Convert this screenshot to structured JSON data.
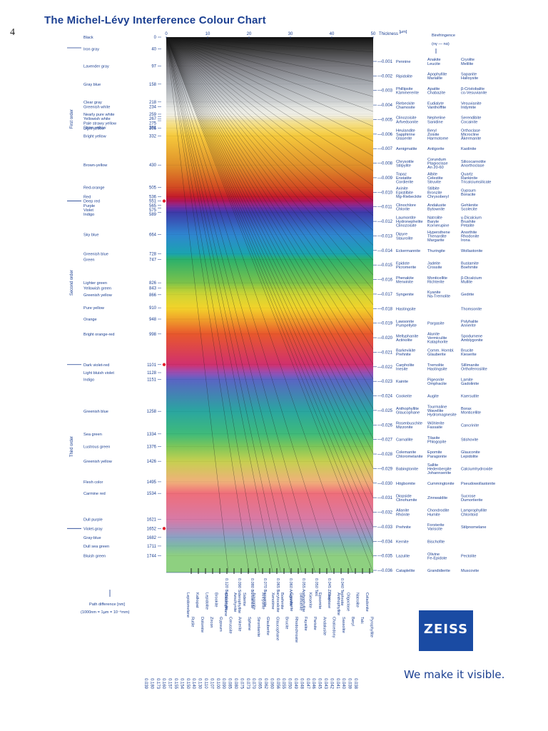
{
  "page": {
    "title": "The Michel-Lévy Interference Colour Chart",
    "page_number": "4"
  },
  "brand": {
    "name": "ZEISS",
    "tagline": "We make it visible.",
    "color": "#1a4ba3"
  },
  "chart_data": {
    "type": "heatmap",
    "title": "The Michel-Lévy Interference Colour Chart",
    "thickness_axis": {
      "label": "Thickness",
      "unit": "[µm]",
      "range": [
        0,
        50
      ],
      "ticks": [
        0,
        10,
        20,
        30,
        40,
        50
      ]
    },
    "path_difference_axis": {
      "range": [
        0,
        1800
      ],
      "note_line1": "Path difference [nm]",
      "note_line2": "(1000nm = 1µm = 10⁻⁶mm)"
    },
    "birefringence_header": {
      "line1": "Birefringence",
      "line2": "(nγ — nα)"
    },
    "orders": [
      "First order",
      "Second order",
      "Third order"
    ],
    "colors": [
      {
        "name": "Black",
        "nm": "0",
        "hex": "#111111"
      },
      {
        "name": "Iron gray",
        "nm": "40",
        "hex": "#3a3a3a"
      },
      {
        "name": "Lavender gray",
        "nm": "97",
        "hex": "#7a7a80"
      },
      {
        "name": "Gray blue",
        "nm": "158",
        "hex": "#a8acb2"
      },
      {
        "name": "Clear gray",
        "nm": "218",
        "hex": "#cfd2d3"
      },
      {
        "name": "Greenish white",
        "nm": "234",
        "hex": "#e2e4e0"
      },
      {
        "name": "Nearly pure white",
        "nm": "259",
        "hex": "#f0efe6"
      },
      {
        "name": "Yellowish white",
        "nm": "267",
        "hex": "#f1edd6"
      },
      {
        "name": "Pale strawy yellow",
        "nm": "275",
        "hex": "#f2e8bf"
      },
      {
        "name": "Straw yellow",
        "nm": "281",
        "hex": "#f2e29e"
      },
      {
        "name": "Light yellow",
        "nm": "306",
        "hex": "#f5d96a"
      },
      {
        "name": "Bright yellow",
        "nm": "332",
        "hex": "#f5c93c"
      },
      {
        "name": "Brown-yellow",
        "nm": "430",
        "hex": "#e0912a"
      },
      {
        "name": "Red-orange",
        "nm": "505",
        "hex": "#d24a22"
      },
      {
        "name": "Red",
        "nm": "536",
        "hex": "#c41c2a"
      },
      {
        "name": "Deep red",
        "nm": "551",
        "hex": "#b0155a"
      },
      {
        "name": "Purple",
        "nm": "565",
        "hex": "#8e2a8e"
      },
      {
        "name": "Violet",
        "nm": "575",
        "hex": "#6a2ea6"
      },
      {
        "name": "Indigo",
        "nm": "589",
        "hex": "#3d3aa8"
      },
      {
        "name": "Sky blue",
        "nm": "664",
        "hex": "#2f86d0"
      },
      {
        "name": "Greenish blue",
        "nm": "728",
        "hex": "#1ba3b0"
      },
      {
        "name": "Green",
        "nm": "747",
        "hex": "#2bb06c"
      },
      {
        "name": "Lighter green",
        "nm": "826",
        "hex": "#7cc24a"
      },
      {
        "name": "Yellowish green",
        "nm": "843",
        "hex": "#a6cc3c"
      },
      {
        "name": "Greenish yellow",
        "nm": "866",
        "hex": "#cfd434"
      },
      {
        "name": "Pure yellow",
        "nm": "910",
        "hex": "#f2d32a"
      },
      {
        "name": "Orange",
        "nm": "948",
        "hex": "#f0a22a"
      },
      {
        "name": "Bright orange-red",
        "nm": "998",
        "hex": "#e8582c"
      },
      {
        "name": "Dark violet-red",
        "nm": "1101",
        "hex": "#d0306e"
      },
      {
        "name": "Light bluish violet",
        "nm": "1128",
        "hex": "#9a4fb4"
      },
      {
        "name": "Indigo",
        "nm": "1151",
        "hex": "#5a64c4"
      },
      {
        "name": "Greenish blue",
        "nm": "1258",
        "hex": "#2aa6a0"
      },
      {
        "name": "Sea green",
        "nm": "1334",
        "hex": "#3fba7a"
      },
      {
        "name": "Lustrous green",
        "nm": "1376",
        "hex": "#7cc65a"
      },
      {
        "name": "Greenish yellow",
        "nm": "1426",
        "hex": "#c6d050"
      },
      {
        "name": "Flesh color",
        "nm": "1495",
        "hex": "#f0b07a"
      },
      {
        "name": "Carmine red",
        "nm": "1534",
        "hex": "#ef6e7a"
      },
      {
        "name": "Dull purple",
        "nm": "1621",
        "hex": "#d77aa6"
      },
      {
        "name": "Violet-gray",
        "nm": "1652",
        "hex": "#b48ab8"
      },
      {
        "name": "Gray-blue",
        "nm": "1682",
        "hex": "#8aa2c4"
      },
      {
        "name": "Dull sea green",
        "nm": "1711",
        "hex": "#7ebaa4"
      },
      {
        "name": "Bluish green",
        "nm": "1744",
        "hex": "#8ed080"
      }
    ],
    "birefringence_rows": [
      {
        "value": "0.001",
        "minerals": [
          [
            "Pennine"
          ],
          [
            "Anakite",
            "Leucite"
          ],
          [
            "Cryolite",
            "Melilite"
          ]
        ]
      },
      {
        "value": "0.002",
        "minerals": [
          [
            "Ripidolite"
          ],
          [
            "Apophyllite",
            "Marialite"
          ],
          [
            "Sapanite",
            "Halloysite"
          ]
        ]
      },
      {
        "value": "0.003",
        "minerals": [
          [
            "Phillipsite",
            "Kämmererite"
          ],
          [
            "Apatite",
            "Chabazite"
          ],
          [
            "β-Cristobalite",
            "co-Vesuvianite"
          ]
        ]
      },
      {
        "value": "0.004",
        "minerals": [
          [
            "Riebeckite",
            "Chamosite"
          ],
          [
            "Eudialyte",
            "Vanthoffite"
          ],
          [
            "Vesuvianite",
            "Iridymite"
          ]
        ]
      },
      {
        "value": "0.005",
        "minerals": [
          [
            "Clinozoisite",
            "Arfvedsonite"
          ],
          [
            "Nepheline",
            "Sanidine"
          ],
          [
            "Serendibite",
            "Cocainite"
          ]
        ]
      },
      {
        "value": "0.006",
        "minerals": [
          [
            "Heulandite",
            "Sapphirine",
            "Glaserite"
          ],
          [
            "Beryl",
            "Zoisite",
            "Harmotome"
          ],
          [
            "Orthoclase",
            "Microcline",
            "Åkermanite"
          ]
        ]
      },
      {
        "value": "0.007",
        "minerals": [
          [
            "Aenigmatite"
          ],
          [
            "Antigorite"
          ],
          [
            "Kaolinite"
          ]
        ]
      },
      {
        "value": "0.008",
        "minerals": [
          [
            "Chrysotile",
            "Stilpylite"
          ],
          [
            "Corundum",
            "Plagioclase",
            "An 20-60"
          ],
          [
            "Silicocarnotite",
            "Anorthoclase"
          ]
        ]
      },
      {
        "value": "0.009",
        "minerals": [
          [
            "Topaz",
            "Enstatite",
            "Cordierite"
          ],
          [
            "Albite",
            "Celestite",
            "Struvite"
          ],
          [
            "Quartz",
            "Rankinite",
            "Tricalciumsilicate"
          ]
        ]
      },
      {
        "value": "0.010",
        "minerals": [
          [
            "Axinite",
            "Epistilbite",
            "Mg-Riebeckite"
          ],
          [
            "Stilbite",
            "Bronzite",
            "Chrysoberyl"
          ],
          [
            "Gypsum",
            "Boracite"
          ]
        ]
      },
      {
        "value": "0.011",
        "minerals": [
          [
            "Clinochlore",
            "Chlorite"
          ],
          [
            "Andalusite",
            "Bytownite"
          ],
          [
            "Gehlenite",
            "Scolecite"
          ]
        ]
      },
      {
        "value": "0.012",
        "minerals": [
          [
            "Laumontite",
            "Hydronephelite",
            "Clinozoisite"
          ],
          [
            "Natrolite",
            "Baryte",
            "Kornerupine"
          ],
          [
            "γ-Dicalcium",
            "Brushite",
            "Petalite"
          ]
        ]
      },
      {
        "value": "0.013",
        "minerals": [
          [
            "Dipyre",
            "Staurolite"
          ],
          [
            "Hypersthene",
            "Thenardite",
            "Margarite"
          ],
          [
            "Anorthite",
            "Rhodonite",
            "Irona"
          ]
        ]
      },
      {
        "value": "0.014",
        "minerals": [
          [
            "Eckermannite"
          ],
          [
            "Thuringite"
          ],
          [
            "Wollastonite"
          ]
        ]
      },
      {
        "value": "0.015",
        "minerals": [
          [
            "Epidote",
            "Picromerite"
          ],
          [
            "Jadeite",
            "Crossite"
          ],
          [
            "Bustamite",
            "Boehmite"
          ]
        ]
      },
      {
        "value": "0.016",
        "minerals": [
          [
            "Phenakite",
            "Merwinite"
          ],
          [
            "Monticellite",
            "Richterite"
          ],
          [
            "β-Dicalcium",
            "Mullite"
          ]
        ]
      },
      {
        "value": "0.017",
        "minerals": [
          [
            "Syngenite"
          ],
          [
            "Kyanite",
            "Na-Tremolite"
          ],
          [
            "Gedrite"
          ]
        ]
      },
      {
        "value": "0.018",
        "minerals": [
          [
            "Hastingsite"
          ],
          [],
          [
            "Thomsonite"
          ]
        ]
      },
      {
        "value": "0.019",
        "minerals": [
          [
            "Lawsonite",
            "Pumpellyite"
          ],
          [
            "Pargasite"
          ],
          [
            "Polyhalite",
            "Annerite"
          ]
        ]
      },
      {
        "value": "0.020",
        "minerals": [
          [
            "Mellyphanite",
            "Actinolite"
          ],
          [
            "Alunite",
            "Vermiculite",
            "Kataphorite"
          ],
          [
            "Spodumene",
            "Amblygonite"
          ]
        ]
      },
      {
        "value": "0.021",
        "minerals": [
          [
            "Barkevikite",
            "Prehnite"
          ],
          [
            "Comm. Hornbl.",
            "Glauberite"
          ],
          [
            "Brucite",
            "Kieserite"
          ]
        ]
      },
      {
        "value": "0.022",
        "minerals": [
          [
            "Carpholite",
            "Inesite"
          ],
          [
            "Tremolite",
            "Hastingsite"
          ],
          [
            "Sillimanite",
            "Orthoferrosilite"
          ]
        ]
      },
      {
        "value": "0.023",
        "minerals": [
          [
            "Kainite"
          ],
          [
            "Pigeonite",
            "Omphacite"
          ],
          [
            "Lamite",
            "Gadolinite"
          ]
        ]
      },
      {
        "value": "0.024",
        "minerals": [
          [
            "Cookeite"
          ],
          [
            "Augite"
          ],
          [
            "Kaersutite"
          ]
        ]
      },
      {
        "value": "0.025",
        "minerals": [
          [
            "Anthophyllite",
            "Glaucophane"
          ],
          [
            "Tourmaline",
            "Wavellite",
            "Hydromagnesite"
          ],
          [
            "Borax",
            "Monticellite"
          ]
        ]
      },
      {
        "value": "0.026",
        "minerals": [
          [
            "Rosenbuschite",
            "Mizzonite"
          ],
          [
            "Wöhlerite",
            "Fassaite"
          ],
          [
            "Cancrinite"
          ]
        ]
      },
      {
        "value": "0.027",
        "minerals": [
          [
            "Carnallite"
          ],
          [
            "Tilasite",
            "Phlogopite"
          ],
          [
            "Stishovite"
          ]
        ]
      },
      {
        "value": "0.028",
        "minerals": [
          [
            "Colemanite",
            "Chloromelanite"
          ],
          [
            "Epomite",
            "Paragonite"
          ],
          [
            "Glauconite",
            "Lepidolite"
          ]
        ]
      },
      {
        "value": "0.029",
        "minerals": [
          [
            "Babingtonite"
          ],
          [
            "Sallite",
            "Hedenbergite",
            "Johannsenite"
          ],
          [
            "Calciumhydroxide"
          ]
        ]
      },
      {
        "value": "0.030",
        "minerals": [
          [
            "Högbomite"
          ],
          [
            "Cummingtonite"
          ],
          [
            "Pseudowollastonite"
          ]
        ]
      },
      {
        "value": "0.031",
        "minerals": [
          [
            "Diopside",
            "Clinohumite"
          ],
          [
            "Zinnwaldite"
          ],
          [
            "Sucrose",
            "Dumortierite"
          ]
        ]
      },
      {
        "value": "0.032",
        "minerals": [
          [
            "Allanite",
            "Rhönite"
          ],
          [
            "Chondrodite",
            "Humite"
          ],
          [
            "Lamprophyllite",
            "Chloritoid"
          ]
        ]
      },
      {
        "value": "0.033",
        "minerals": [
          [
            "Prehnite"
          ],
          [
            "Forsterite",
            "Variscite"
          ],
          [
            "Stilpnomelane"
          ]
        ]
      },
      {
        "value": "0.034",
        "minerals": [
          [
            "Kernite"
          ],
          [
            "Bischofite"
          ],
          []
        ]
      },
      {
        "value": "0.035",
        "minerals": [
          [
            "Lazulite"
          ],
          [
            "Olivine",
            "Fe-Epidote"
          ],
          [
            "Pectolite"
          ]
        ]
      },
      {
        "value": "0.036",
        "minerals": [
          [
            "Cataplelite"
          ],
          [
            "Grandidierite"
          ],
          [
            "Muscovite"
          ]
        ]
      }
    ],
    "bottom_fan_labels": [
      "0.120 Baddeleyite",
      "0.090 Siderophyllite",
      "0.080 Burbankite",
      "0.070 Bassanite",
      "0.065 Barytocalcite",
      "0.060 Aragonite",
      "0.055 Anthophyllite",
      "0.050 Talc",
      "0.045 Zircon",
      "0.040 Tephroite"
    ],
    "bottom_minerals": [
      "Lepidomelane",
      "Rutile",
      "Kalkspat",
      "Dolomite",
      "Lepidolite",
      "Zircon",
      "Brookite",
      "Gypsum",
      "Glaucophane",
      "Cerussite",
      "Aeschynite",
      "Ankerite",
      "Siderite",
      "Sphene",
      "Aragonite",
      "Strontianite",
      "Anhydrite",
      "Glauberite",
      "Xenotime",
      "Glaucophane",
      "Boehmite",
      "Brucite",
      "Cassiterite",
      "Rhodochrosite",
      "Sillimanite",
      "Fayalite",
      "Kieserite",
      "Parisite",
      "Epsomite",
      "Andalusite",
      "Dioptase",
      "Chalcedony",
      "Anthophyllite",
      "Sassolite",
      "Oligoclase",
      "Beryl",
      "Natrolite",
      "Talc",
      "Celadonite",
      "Pyrophyllite"
    ],
    "bottom_values": [
      "0.039",
      "0.180",
      "0.173",
      "0.160",
      "0.157",
      "0.155",
      "0.154",
      "0.150",
      "0.140",
      "0.130",
      "0.110",
      "0.107",
      "0.100",
      "0.090",
      "0.085",
      "0.080",
      "0.075",
      "0.073",
      "0.070",
      "0.065",
      "0.062",
      "0.060",
      "0.056",
      "0.055",
      "0.050",
      "0.049",
      "0.048",
      "0.047",
      "0.046",
      "0.045",
      "0.043",
      "0.042",
      "0.041",
      "0.040",
      "0.039",
      "0.038"
    ]
  }
}
